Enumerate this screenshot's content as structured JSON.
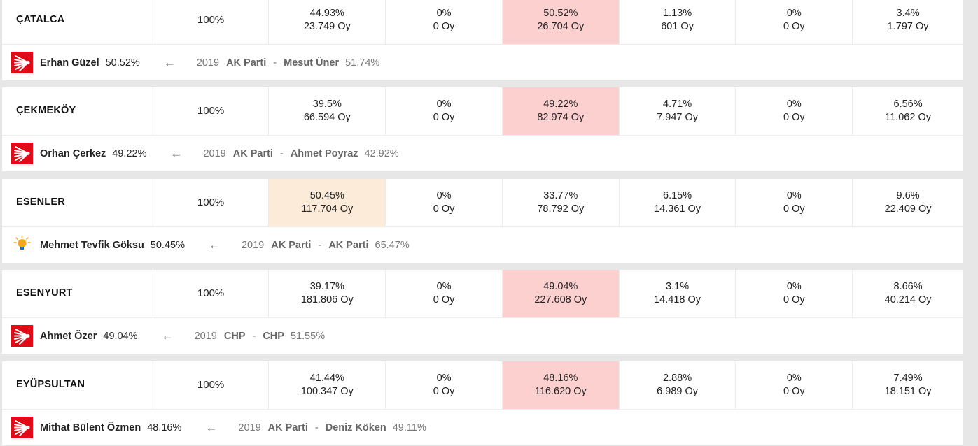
{
  "districts": [
    {
      "name": "ÇATALCA",
      "turnout": "100%",
      "cells": [
        {
          "pct": "44.93%",
          "votes": "23.749 Oy"
        },
        {
          "pct": "0%",
          "votes": "0 Oy"
        },
        {
          "pct": "50.52%",
          "votes": "26.704 Oy"
        },
        {
          "pct": "1.13%",
          "votes": "601 Oy"
        },
        {
          "pct": "0%",
          "votes": "0 Oy"
        },
        {
          "pct": "3.4%",
          "votes": "1.797 Oy"
        }
      ],
      "highlight_index": 2,
      "highlight_color": "#fdd0d0",
      "winner": {
        "party_logo": "chp-logo",
        "name": "Erhan Güzel",
        "pct": "50.52%"
      },
      "arrow": "←",
      "previous": {
        "year": "2019",
        "party": "AK Parti",
        "dash": "-",
        "candidate": "Mesut Üner",
        "pct": "51.74%"
      }
    },
    {
      "name": "ÇEKMEKÖY",
      "turnout": "100%",
      "cells": [
        {
          "pct": "39.5%",
          "votes": "66.594 Oy"
        },
        {
          "pct": "0%",
          "votes": "0 Oy"
        },
        {
          "pct": "49.22%",
          "votes": "82.974 Oy"
        },
        {
          "pct": "4.71%",
          "votes": "7.947 Oy"
        },
        {
          "pct": "0%",
          "votes": "0 Oy"
        },
        {
          "pct": "6.56%",
          "votes": "11.062 Oy"
        }
      ],
      "highlight_index": 2,
      "highlight_color": "#fdd0d0",
      "winner": {
        "party_logo": "chp-logo",
        "name": "Orhan Çerkez",
        "pct": "49.22%"
      },
      "arrow": "←",
      "previous": {
        "year": "2019",
        "party": "AK Parti",
        "dash": "-",
        "candidate": "Ahmet Poyraz",
        "pct": "42.92%"
      }
    },
    {
      "name": "ESENLER",
      "turnout": "100%",
      "cells": [
        {
          "pct": "50.45%",
          "votes": "117.704 Oy"
        },
        {
          "pct": "0%",
          "votes": "0 Oy"
        },
        {
          "pct": "33.77%",
          "votes": "78.792 Oy"
        },
        {
          "pct": "6.15%",
          "votes": "14.361 Oy"
        },
        {
          "pct": "0%",
          "votes": "0 Oy"
        },
        {
          "pct": "9.6%",
          "votes": "22.409 Oy"
        }
      ],
      "highlight_index": 0,
      "highlight_color": "#fbebd8",
      "winner": {
        "party_logo": "akp-logo",
        "logo_text": "AK PARTİ",
        "name": "Mehmet Tevfik Göksu",
        "pct": "50.45%"
      },
      "arrow": "←",
      "previous": {
        "year": "2019",
        "party": "AK Parti",
        "dash": "-",
        "candidate": "AK Parti",
        "pct": "65.47%"
      }
    },
    {
      "name": "ESENYURT",
      "turnout": "100%",
      "cells": [
        {
          "pct": "39.17%",
          "votes": "181.806 Oy"
        },
        {
          "pct": "0%",
          "votes": "0 Oy"
        },
        {
          "pct": "49.04%",
          "votes": "227.608 Oy"
        },
        {
          "pct": "3.1%",
          "votes": "14.418 Oy"
        },
        {
          "pct": "0%",
          "votes": "0 Oy"
        },
        {
          "pct": "8.66%",
          "votes": "40.214 Oy"
        }
      ],
      "highlight_index": 2,
      "highlight_color": "#fdd0d0",
      "winner": {
        "party_logo": "chp-logo",
        "name": "Ahmet Özer",
        "pct": "49.04%"
      },
      "arrow": "←",
      "previous": {
        "year": "2019",
        "party": "CHP",
        "dash": "-",
        "candidate": "CHP",
        "pct": "51.55%"
      }
    },
    {
      "name": "EYÜPSULTAN",
      "turnout": "100%",
      "cells": [
        {
          "pct": "41.44%",
          "votes": "100.347 Oy"
        },
        {
          "pct": "0%",
          "votes": "0 Oy"
        },
        {
          "pct": "48.16%",
          "votes": "116.620 Oy"
        },
        {
          "pct": "2.88%",
          "votes": "6.989 Oy"
        },
        {
          "pct": "0%",
          "votes": "0 Oy"
        },
        {
          "pct": "7.49%",
          "votes": "18.151 Oy"
        }
      ],
      "highlight_index": 2,
      "highlight_color": "#fdd0d0",
      "winner": {
        "party_logo": "chp-logo",
        "name": "Mithat Bülent Özmen",
        "pct": "48.16%"
      },
      "arrow": "←",
      "previous": {
        "year": "2019",
        "party": "AK Parti",
        "dash": "-",
        "candidate": "Deniz Köken",
        "pct": "49.11%"
      }
    }
  ]
}
